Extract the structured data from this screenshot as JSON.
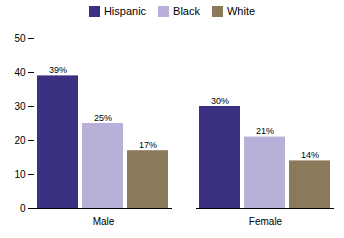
{
  "chart_data": {
    "type": "bar",
    "categories": [
      "Male",
      "Female"
    ],
    "series": [
      {
        "name": "Hispanic",
        "color": "#3b3183",
        "values": [
          39,
          30
        ],
        "value_labels": [
          "39%",
          "30%"
        ]
      },
      {
        "name": "Black",
        "color": "#b8b0d8",
        "values": [
          25,
          21
        ],
        "value_labels": [
          "25%",
          "21%"
        ]
      },
      {
        "name": "White",
        "color": "#8b7a5a",
        "values": [
          17,
          14
        ],
        "value_labels": [
          "17%",
          "14%"
        ]
      }
    ],
    "ylim": [
      0,
      50
    ],
    "yticks": [
      0,
      10,
      20,
      30,
      40,
      50
    ],
    "data_labels": true,
    "legend": "top",
    "grid": false
  }
}
